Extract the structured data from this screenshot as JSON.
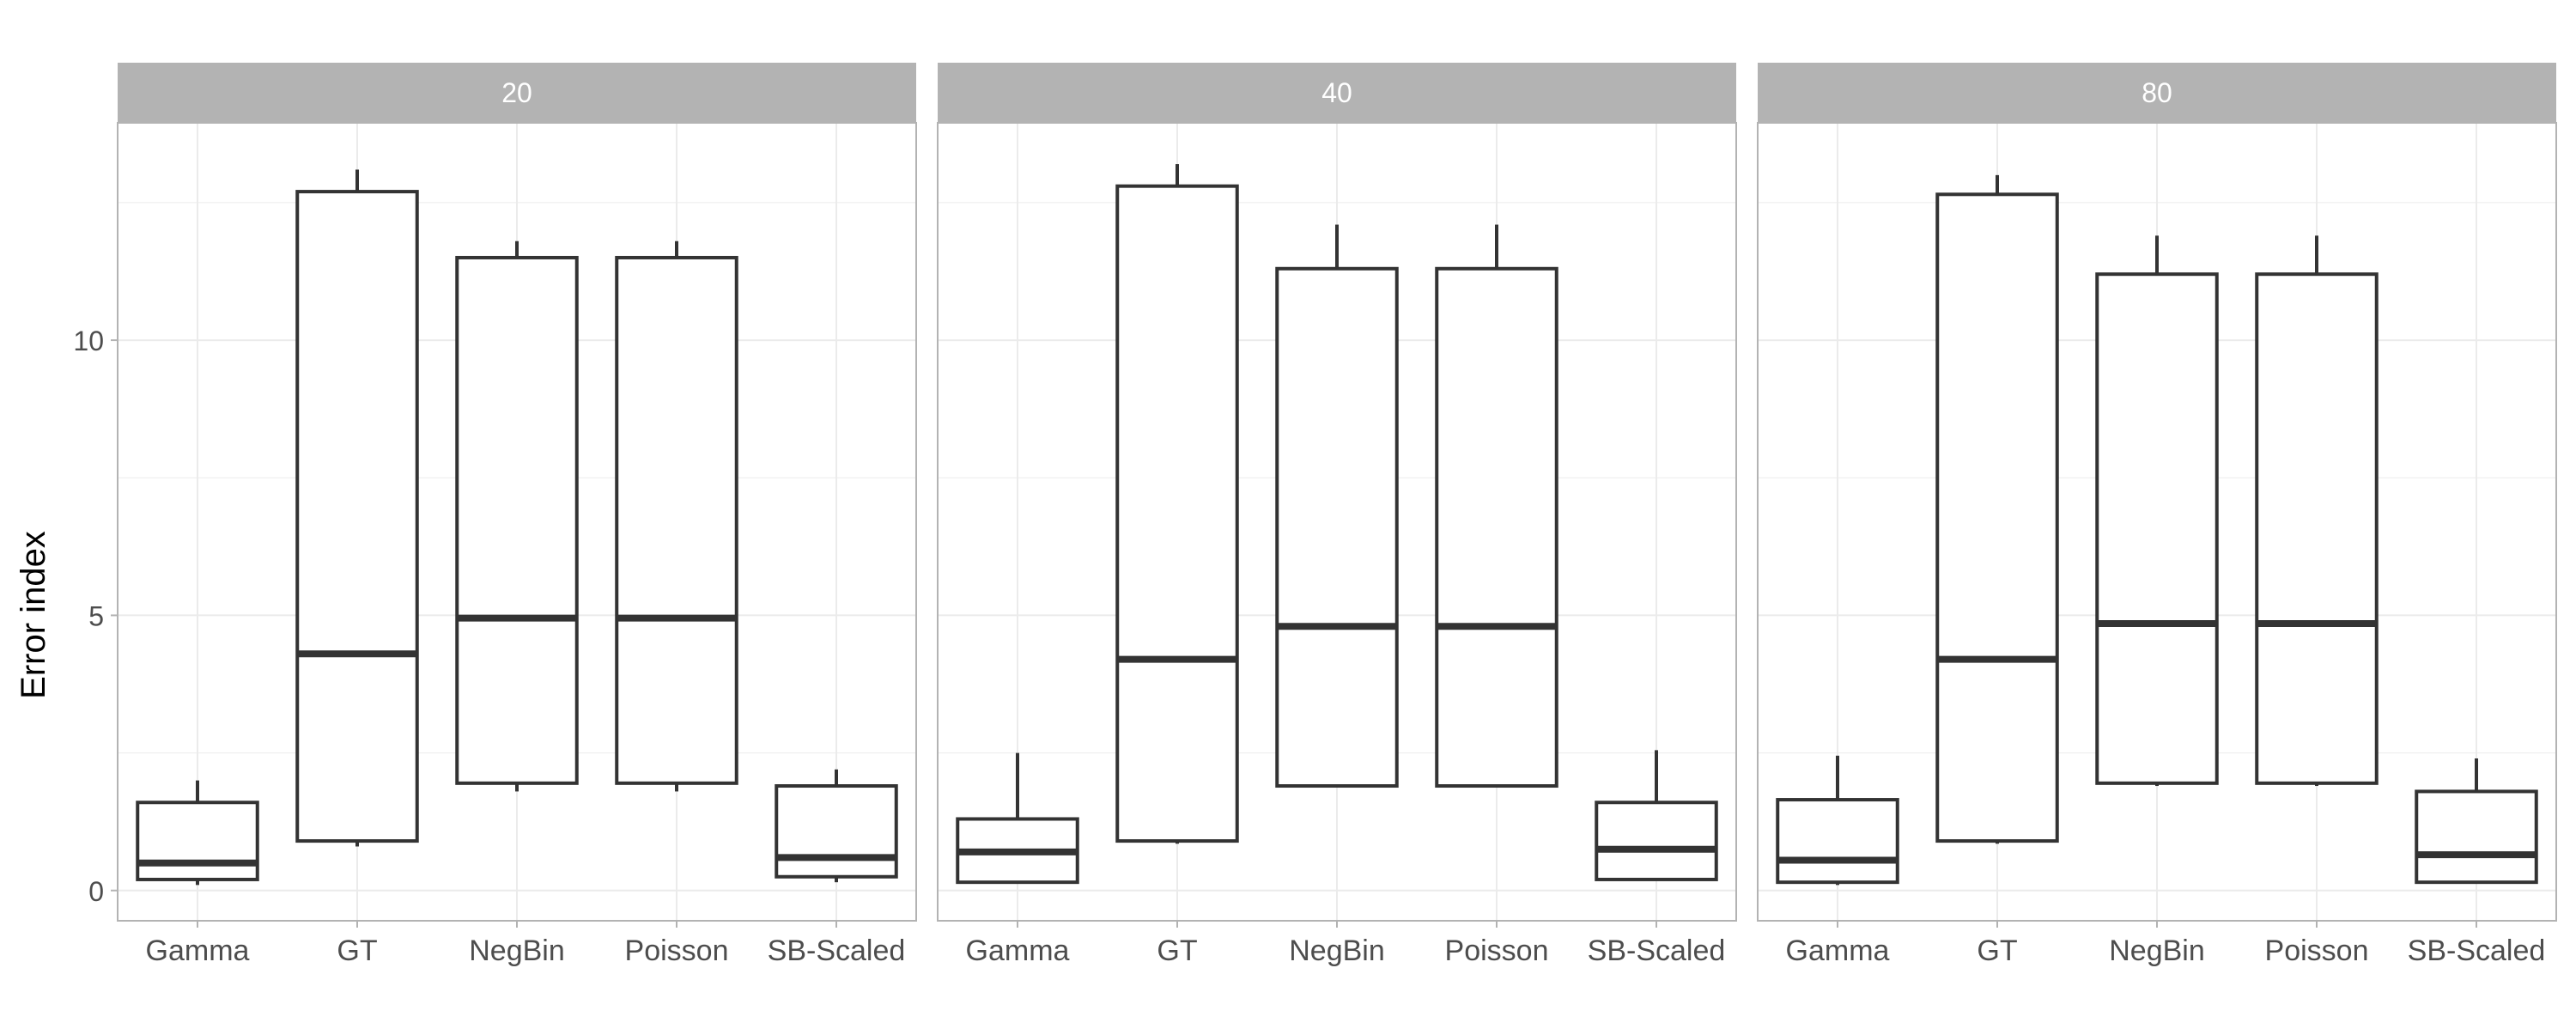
{
  "chart_data": {
    "type": "box",
    "ylabel": "Error index",
    "xlabel": "",
    "ylim": [
      -0.55,
      13.95
    ],
    "yticks": [
      0,
      5,
      10
    ],
    "grid": true,
    "categories": [
      "Gamma",
      "GT",
      "NegBin",
      "Poisson",
      "SB-Scaled"
    ],
    "panels": [
      {
        "label": "20",
        "boxes": [
          {
            "category": "Gamma",
            "whisker_low": 0.1,
            "q1": 0.2,
            "median": 0.5,
            "q3": 1.6,
            "whisker_high": 2.0
          },
          {
            "category": "GT",
            "whisker_low": 0.8,
            "q1": 0.9,
            "median": 4.3,
            "q3": 12.7,
            "whisker_high": 13.1
          },
          {
            "category": "NegBin",
            "whisker_low": 1.8,
            "q1": 1.95,
            "median": 4.95,
            "q3": 11.5,
            "whisker_high": 11.8
          },
          {
            "category": "Poisson",
            "whisker_low": 1.8,
            "q1": 1.95,
            "median": 4.95,
            "q3": 11.5,
            "whisker_high": 11.8
          },
          {
            "category": "SB-Scaled",
            "whisker_low": 0.15,
            "q1": 0.25,
            "median": 0.6,
            "q3": 1.9,
            "whisker_high": 2.2
          }
        ]
      },
      {
        "label": "40",
        "boxes": [
          {
            "category": "Gamma",
            "whisker_low": 0.15,
            "q1": 0.15,
            "median": 0.7,
            "q3": 1.3,
            "whisker_high": 2.5
          },
          {
            "category": "GT",
            "whisker_low": 0.85,
            "q1": 0.9,
            "median": 4.2,
            "q3": 12.8,
            "whisker_high": 13.2
          },
          {
            "category": "NegBin",
            "whisker_low": 1.9,
            "q1": 1.9,
            "median": 4.8,
            "q3": 11.3,
            "whisker_high": 12.1
          },
          {
            "category": "Poisson",
            "whisker_low": 1.9,
            "q1": 1.9,
            "median": 4.8,
            "q3": 11.3,
            "whisker_high": 12.1
          },
          {
            "category": "SB-Scaled",
            "whisker_low": 0.2,
            "q1": 0.2,
            "median": 0.75,
            "q3": 1.6,
            "whisker_high": 2.55
          }
        ]
      },
      {
        "label": "80",
        "boxes": [
          {
            "category": "Gamma",
            "whisker_low": 0.1,
            "q1": 0.15,
            "median": 0.55,
            "q3": 1.65,
            "whisker_high": 2.45
          },
          {
            "category": "GT",
            "whisker_low": 0.85,
            "q1": 0.9,
            "median": 4.2,
            "q3": 12.65,
            "whisker_high": 13.0
          },
          {
            "category": "NegBin",
            "whisker_low": 1.9,
            "q1": 1.95,
            "median": 4.85,
            "q3": 11.2,
            "whisker_high": 11.9
          },
          {
            "category": "Poisson",
            "whisker_low": 1.9,
            "q1": 1.95,
            "median": 4.85,
            "q3": 11.2,
            "whisker_high": 11.9
          },
          {
            "category": "SB-Scaled",
            "whisker_low": 0.15,
            "q1": 0.15,
            "median": 0.65,
            "q3": 1.8,
            "whisker_high": 2.4
          }
        ]
      }
    ]
  },
  "colors": {
    "strip_background": "#b3b3b3",
    "strip_text": "#ffffff",
    "grid": "#ebebeb",
    "panel_border": "#b3b3b3",
    "box_stroke": "#333333",
    "tick_text": "#4d4d4d",
    "axis_title": "#000000"
  }
}
